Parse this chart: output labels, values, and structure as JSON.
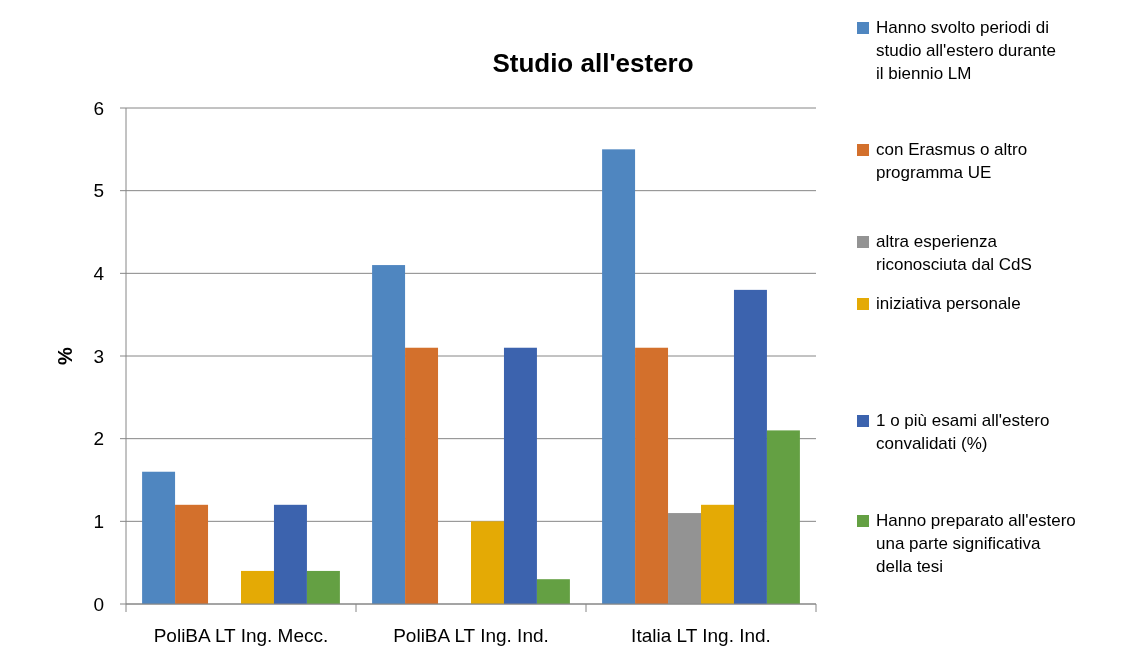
{
  "chart_data": {
    "type": "bar",
    "title": "Studio all'estero",
    "ylabel": "%",
    "categories": [
      "PoliBA LT Ing. Mecc.",
      "PoliBA LT Ing. Ind.",
      "Italia LT Ing. Ind."
    ],
    "series": [
      {
        "name": "Hanno svolto periodi di studio all'estero durante il biennio LM",
        "color": "#4f86c0",
        "values": [
          1.6,
          4.1,
          5.5
        ]
      },
      {
        "name": "con Erasmus o altro programma UE",
        "color": "#d3702c",
        "values": [
          1.2,
          3.1,
          3.1
        ]
      },
      {
        "name": "altra esperienza riconosciuta dal CdS",
        "color": "#939393",
        "values": [
          null,
          null,
          1.1
        ]
      },
      {
        "name": "iniziativa personale",
        "color": "#e4aa05",
        "values": [
          0.4,
          1.0,
          1.2
        ]
      },
      {
        "name": "1 o più esami all'estero convalidati (%)",
        "color": "#3c63ae",
        "values": [
          1.2,
          3.1,
          3.8
        ]
      },
      {
        "name": "Hanno preparato all'estero una parte significativa della tesi",
        "color": "#64a043",
        "values": [
          0.4,
          0.3,
          2.1
        ]
      }
    ],
    "ylim": [
      0,
      6
    ],
    "yticks": [
      0,
      1,
      2,
      3,
      4,
      5,
      6
    ],
    "grid": "y",
    "legend": "right"
  }
}
